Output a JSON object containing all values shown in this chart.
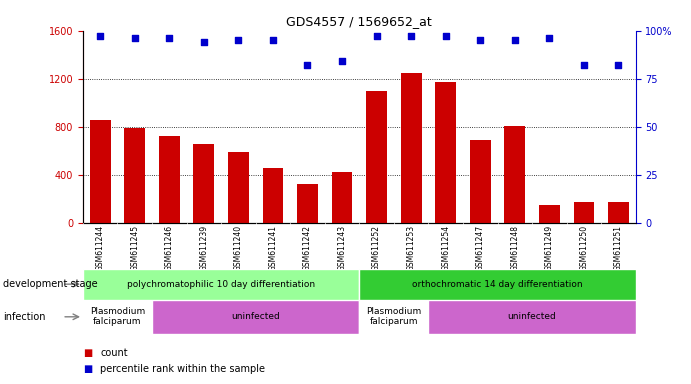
{
  "title": "GDS4557 / 1569652_at",
  "samples": [
    "GSM611244",
    "GSM611245",
    "GSM611246",
    "GSM611239",
    "GSM611240",
    "GSM611241",
    "GSM611242",
    "GSM611243",
    "GSM611252",
    "GSM611253",
    "GSM611254",
    "GSM611247",
    "GSM611248",
    "GSM611249",
    "GSM611250",
    "GSM611251"
  ],
  "counts": [
    860,
    790,
    720,
    660,
    590,
    460,
    320,
    420,
    1100,
    1250,
    1170,
    690,
    810,
    150,
    170,
    170
  ],
  "percentiles": [
    97,
    96,
    96,
    94,
    95,
    95,
    82,
    84,
    97,
    97,
    97,
    95,
    95,
    96,
    82,
    82
  ],
  "bar_color": "#cc0000",
  "dot_color": "#0000cc",
  "ylim_left": [
    0,
    1600
  ],
  "ylim_right": [
    0,
    100
  ],
  "yticks_left": [
    0,
    400,
    800,
    1200,
    1600
  ],
  "yticks_right": [
    0,
    25,
    50,
    75,
    100
  ],
  "development_stage_groups": [
    {
      "label": "polychromatophilic 10 day differentiation",
      "start": 0,
      "end": 7,
      "color": "#99ff99"
    },
    {
      "label": "orthochromatic 14 day differentiation",
      "start": 8,
      "end": 15,
      "color": "#33cc33"
    }
  ],
  "infection_groups": [
    {
      "label": "Plasmodium\nfalciparum",
      "start": 0,
      "end": 1,
      "color": "#ffffff"
    },
    {
      "label": "uninfected",
      "start": 2,
      "end": 7,
      "color": "#cc66cc"
    },
    {
      "label": "Plasmodium\nfalciparum",
      "start": 8,
      "end": 9,
      "color": "#ffffff"
    },
    {
      "label": "uninfected",
      "start": 10,
      "end": 15,
      "color": "#cc66cc"
    }
  ],
  "legend_items": [
    {
      "label": "count",
      "color": "#cc0000",
      "marker": "s"
    },
    {
      "label": "percentile rank within the sample",
      "color": "#0000cc",
      "marker": "s"
    }
  ],
  "dev_stage_label": "development stage",
  "infection_label": "infection",
  "tick_color_left": "#cc0000",
  "tick_color_right": "#0000cc",
  "background_color": "#ffffff",
  "plot_bg_color": "#ffffff",
  "grid_color": "#000000"
}
